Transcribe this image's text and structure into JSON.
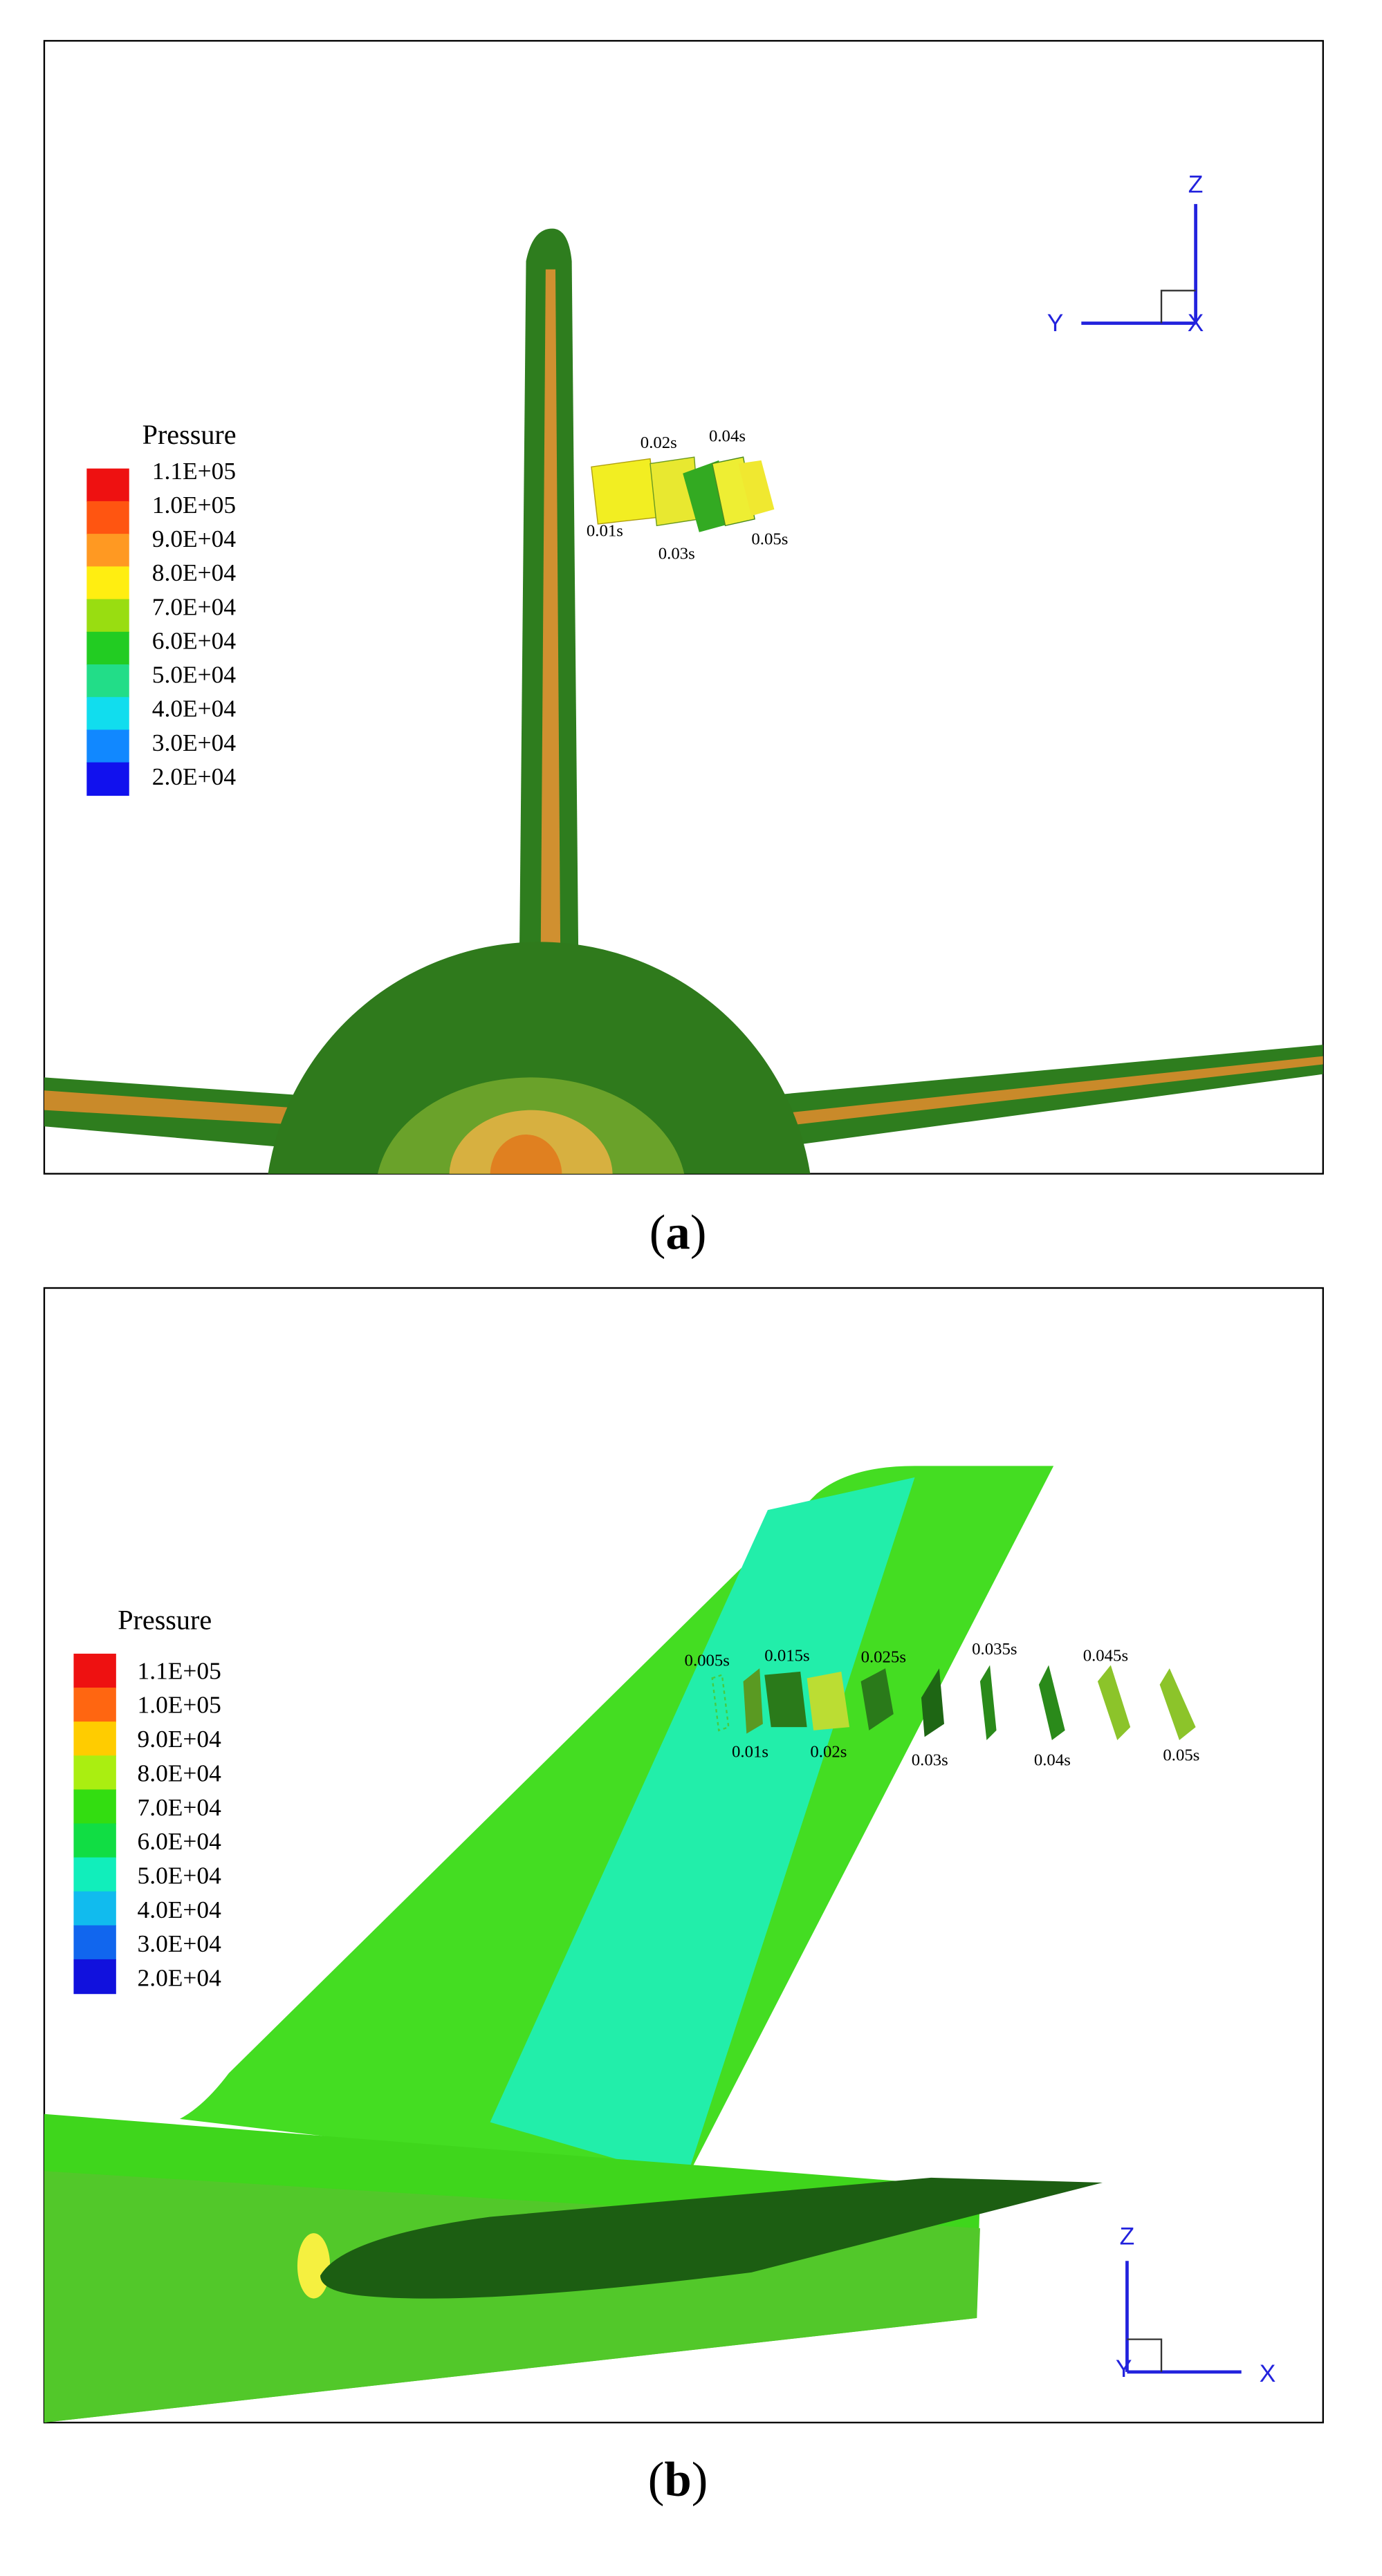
{
  "panels": [
    {
      "caption": {
        "open": "(",
        "letter": "a",
        "close": ")"
      },
      "legend": {
        "title": "Pressure",
        "labels": [
          "1.1E+05",
          "1.0E+05",
          "9.0E+04",
          "8.0E+04",
          "7.0E+04",
          "6.0E+04",
          "5.0E+04",
          "4.0E+04",
          "3.0E+04",
          "2.0E+04"
        ],
        "colors": [
          "#ee1111",
          "#ff5511",
          "#ff9922",
          "#ffee11",
          "#99dd11",
          "#22cc22",
          "#22dd88",
          "#11ddee",
          "#1188ff",
          "#1111ee"
        ]
      },
      "time_labels": [
        "0.01s",
        "0.02s",
        "0.03s",
        "0.04s",
        "0.05s"
      ],
      "axes": [
        "Z",
        "Y",
        "X"
      ]
    },
    {
      "caption": {
        "open": "(",
        "letter": "b",
        "close": ")"
      },
      "legend": {
        "title": "Pressure",
        "labels": [
          "1.1E+05",
          "1.0E+05",
          "9.0E+04",
          "8.0E+04",
          "7.0E+04",
          "6.0E+04",
          "5.0E+04",
          "4.0E+04",
          "3.0E+04",
          "2.0E+04"
        ],
        "colors": [
          "#ee1111",
          "#ff6611",
          "#ffcc00",
          "#aaee11",
          "#33dd11",
          "#11dd44",
          "#11eebb",
          "#11bbee",
          "#1166ee",
          "#1111dd"
        ]
      },
      "time_labels": [
        "0.005s",
        "0.01s",
        "0.015s",
        "0.02s",
        "0.025s",
        "0.03s",
        "0.035s",
        "0.04s",
        "0.045s",
        "0.05s"
      ],
      "axes": [
        "Z",
        "Y",
        "X"
      ]
    }
  ]
}
